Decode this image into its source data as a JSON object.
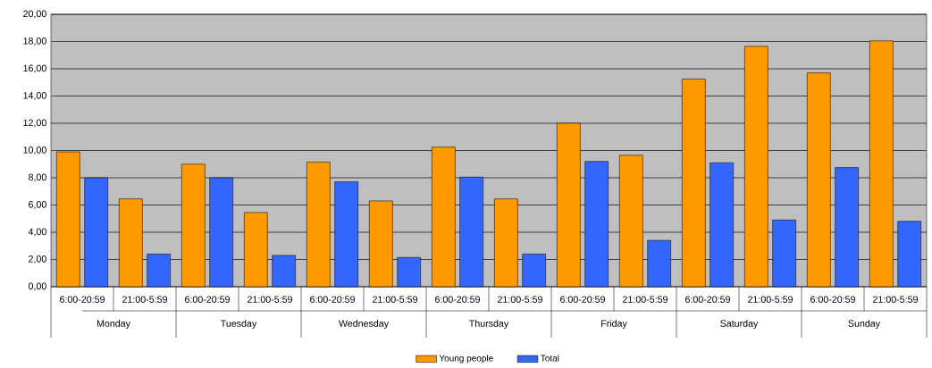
{
  "chart_data": {
    "type": "bar",
    "categories": [
      "6:00-20:59",
      "21:00-5:59",
      "6:00-20:59",
      "21:00-5:59",
      "6:00-20:59",
      "21:00-5:59",
      "6:00-20:59",
      "21:00-5:59",
      "6:00-20:59",
      "21:00-5:59",
      "6:00-20:59",
      "21:00-5:59",
      "6:00-20:59",
      "21:00-5:59"
    ],
    "series": [
      {
        "name": "Young people",
        "color": "#ff9900",
        "values": [
          9.9,
          6.45,
          9.0,
          5.45,
          9.15,
          6.3,
          10.25,
          6.45,
          12.0,
          9.65,
          15.25,
          17.65,
          15.7,
          18.05
        ]
      },
      {
        "name": "Total",
        "color": "#3366ff",
        "values": [
          8.0,
          2.4,
          8.0,
          2.3,
          7.7,
          2.15,
          8.05,
          2.4,
          9.2,
          3.4,
          9.1,
          4.9,
          8.75,
          4.8
        ]
      }
    ],
    "annotations": [
      "Monday",
      "Tuesday",
      "Wednesday",
      "Thursday",
      "Friday",
      "Saturday",
      "Sunday"
    ],
    "ylim": [
      0,
      20
    ],
    "yticks": [
      {
        "value": 0,
        "label": "0,00"
      },
      {
        "value": 2,
        "label": "2,00"
      },
      {
        "value": 4,
        "label": "4,00"
      },
      {
        "value": 6,
        "label": "6,00"
      },
      {
        "value": 8,
        "label": "8,00"
      },
      {
        "value": 10,
        "label": "10,00"
      },
      {
        "value": 12,
        "label": "12,00"
      },
      {
        "value": 14,
        "label": "14,00"
      },
      {
        "value": 16,
        "label": "16,00"
      },
      {
        "value": 18,
        "label": "18,00"
      },
      {
        "value": 20,
        "label": "20,00"
      }
    ],
    "grid": "y",
    "legend": "bottom"
  }
}
